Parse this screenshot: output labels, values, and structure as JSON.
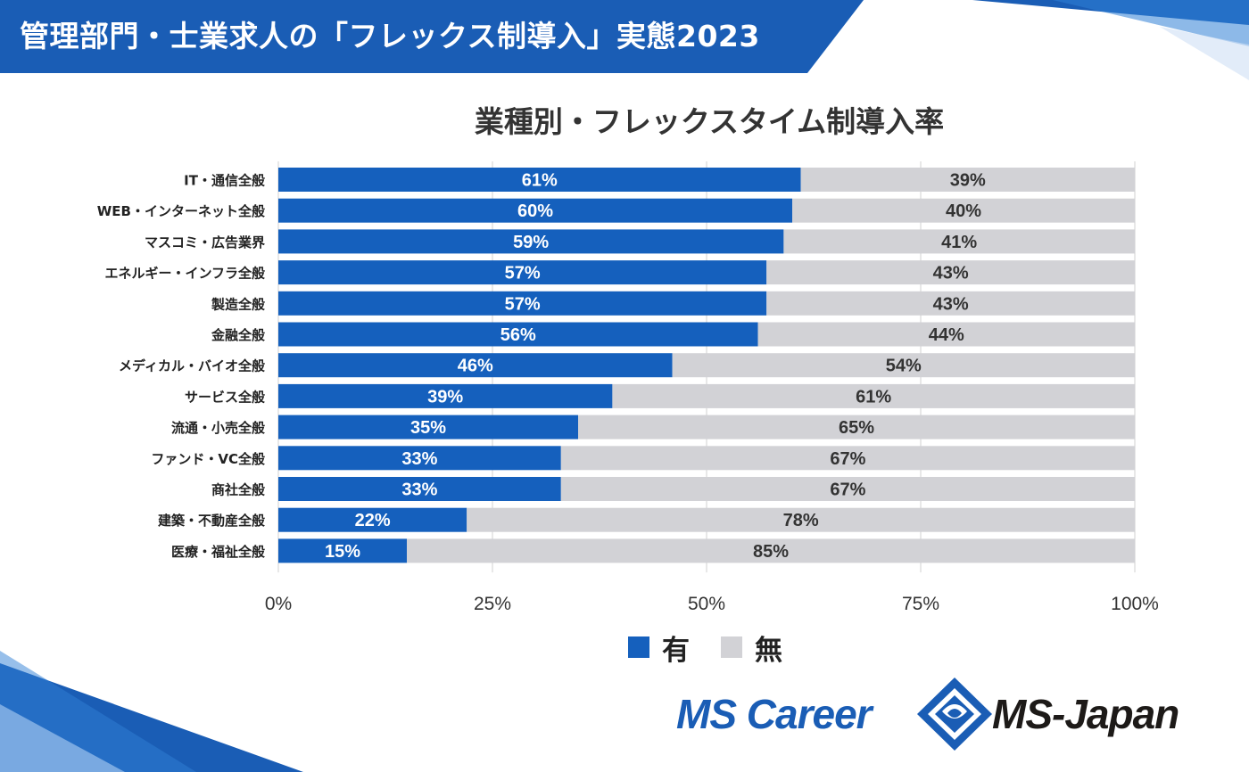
{
  "header": {
    "title": "管理部門・士業求人の「フレックス制導入」実態2023"
  },
  "colors": {
    "banner": "#1a5db5",
    "bar_yes": "#1560bd",
    "bar_no": "#d2d2d6",
    "grid": "#d0d0d0"
  },
  "chart_data": {
    "type": "bar",
    "orientation": "horizontal",
    "stacked": true,
    "percent": true,
    "title": "業種別・フレックスタイム制導入率",
    "categories": [
      "IT・通信全般",
      "WEB・インターネット全般",
      "マスコミ・広告業界",
      "エネルギー・インフラ全般",
      "製造全般",
      "金融全般",
      "メディカル・バイオ全般",
      "サービス全般",
      "流通・小売全般",
      "ファンド・VC全般",
      "商社全般",
      "建築・不動産全般",
      "医療・福祉全般"
    ],
    "series": [
      {
        "name": "有",
        "values": [
          61,
          60,
          59,
          57,
          57,
          56,
          46,
          39,
          35,
          33,
          33,
          22,
          15
        ]
      },
      {
        "name": "無",
        "values": [
          39,
          40,
          41,
          43,
          43,
          44,
          54,
          61,
          65,
          67,
          67,
          78,
          85
        ]
      }
    ],
    "data_labels": {
      "有": [
        "61%",
        "60%",
        "59%",
        "57%",
        "57%",
        "56%",
        "46%",
        "39%",
        "35%",
        "33%",
        "33%",
        "22%",
        "15%"
      ],
      "無": [
        "39%",
        "40%",
        "41%",
        "43%",
        "43%",
        "44%",
        "54%",
        "61%",
        "65%",
        "67%",
        "67%",
        "78%",
        "85%"
      ]
    },
    "xlim": [
      0,
      100
    ],
    "xticks": [
      0,
      25,
      50,
      75,
      100
    ],
    "xtick_labels": [
      "0%",
      "25%",
      "50%",
      "75%",
      "100%"
    ],
    "grid": true,
    "legend_position": "bottom"
  },
  "legend": {
    "yes_label": "有",
    "no_label": "無"
  },
  "logos": {
    "mscareer": "MS Career",
    "msjapan": "MS-Japan"
  }
}
